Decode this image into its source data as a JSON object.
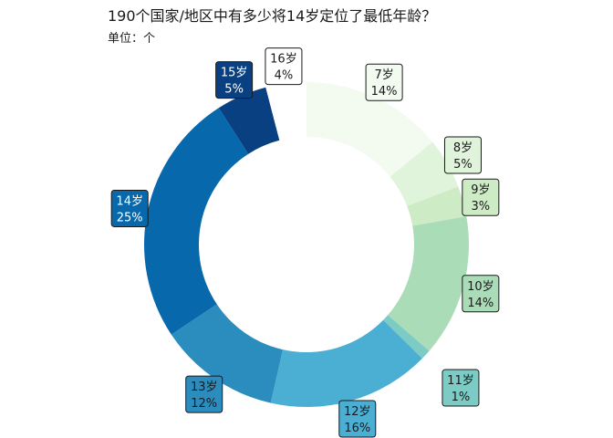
{
  "chart_data": {
    "type": "donut",
    "title": "190个国家/地区中有多少将14岁定位了最低年龄？",
    "subtitle": "单位：个",
    "unit": "%",
    "order": "clockwise from top",
    "slices": [
      {
        "label": "7岁",
        "value": 14,
        "value_label": "14%",
        "color": "#f3faf0"
      },
      {
        "label": "8岁",
        "value": 5,
        "value_label": "5%",
        "color": "#e0f3db"
      },
      {
        "label": "9岁",
        "value": 3,
        "value_label": "3%",
        "color": "#cdebc5"
      },
      {
        "label": "10岁",
        "value": 14,
        "value_label": "14%",
        "color": "#abdcb8"
      },
      {
        "label": "11岁",
        "value": 1,
        "value_label": "1%",
        "color": "#7dcbc5"
      },
      {
        "label": "12岁",
        "value": 16,
        "value_label": "16%",
        "color": "#4bafd3"
      },
      {
        "label": "13岁",
        "value": 12,
        "value_label": "12%",
        "color": "#2b8cbe"
      },
      {
        "label": "14岁",
        "value": 25,
        "value_label": "25%",
        "color": "#0868ac"
      },
      {
        "label": "15岁",
        "value": 5,
        "value_label": "5%",
        "color": "#084081"
      },
      {
        "label": "16岁",
        "value": 4,
        "value_label": "4%",
        "color": "#ffffff"
      }
    ]
  }
}
